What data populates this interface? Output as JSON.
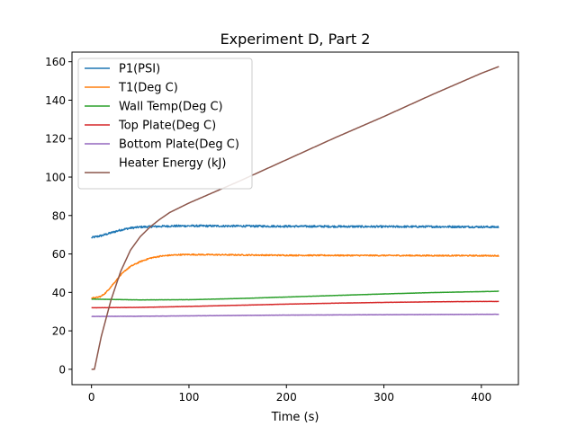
{
  "chart_data": {
    "type": "line",
    "title": "Experiment D, Part 2",
    "xlabel": "Time (s)",
    "ylabel": "",
    "xlim": [
      -20,
      438
    ],
    "ylim": [
      -8,
      165
    ],
    "xticks": [
      0,
      100,
      200,
      300,
      400
    ],
    "yticks": [
      0,
      20,
      40,
      60,
      80,
      100,
      120,
      140,
      160
    ],
    "grid": false,
    "legend_position": "top-left",
    "series": [
      {
        "name": "P1(PSI)",
        "color": "#1f77b4",
        "noise": 0.5,
        "points": [
          [
            0,
            68.5
          ],
          [
            10,
            69.5
          ],
          [
            20,
            71
          ],
          [
            30,
            72.5
          ],
          [
            40,
            73.5
          ],
          [
            50,
            74
          ],
          [
            60,
            74.2
          ],
          [
            80,
            74.5
          ],
          [
            100,
            74.6
          ],
          [
            150,
            74.5
          ],
          [
            200,
            74.4
          ],
          [
            250,
            74.3
          ],
          [
            300,
            74.2
          ],
          [
            350,
            74.2
          ],
          [
            400,
            74.1
          ],
          [
            418,
            74
          ]
        ]
      },
      {
        "name": "T1(Deg C)",
        "color": "#ff7f0e",
        "noise": 0.3,
        "points": [
          [
            0,
            37
          ],
          [
            5,
            37.3
          ],
          [
            10,
            38
          ],
          [
            15,
            40
          ],
          [
            20,
            43
          ],
          [
            25,
            46
          ],
          [
            30,
            49
          ],
          [
            35,
            51.5
          ],
          [
            40,
            53.5
          ],
          [
            50,
            56
          ],
          [
            60,
            57.8
          ],
          [
            70,
            58.8
          ],
          [
            80,
            59.3
          ],
          [
            90,
            59.6
          ],
          [
            100,
            59.7
          ],
          [
            150,
            59.5
          ],
          [
            200,
            59.3
          ],
          [
            300,
            59.2
          ],
          [
            418,
            59.1
          ]
        ]
      },
      {
        "name": "Wall Temp(Deg C)",
        "color": "#2ca02c",
        "noise": 0.05,
        "points": [
          [
            0,
            36.5
          ],
          [
            50,
            36.1
          ],
          [
            100,
            36.2
          ],
          [
            150,
            36.8
          ],
          [
            200,
            37.6
          ],
          [
            250,
            38.4
          ],
          [
            300,
            39.2
          ],
          [
            350,
            39.9
          ],
          [
            400,
            40.4
          ],
          [
            418,
            40.6
          ]
        ]
      },
      {
        "name": "Top Plate(Deg C)",
        "color": "#d62728",
        "noise": 0.05,
        "points": [
          [
            0,
            32
          ],
          [
            50,
            32.2
          ],
          [
            100,
            32.7
          ],
          [
            150,
            33.3
          ],
          [
            200,
            33.9
          ],
          [
            250,
            34.4
          ],
          [
            300,
            34.8
          ],
          [
            350,
            35.1
          ],
          [
            400,
            35.3
          ],
          [
            418,
            35.3
          ]
        ]
      },
      {
        "name": "Bottom Plate(Deg C)",
        "color": "#9467bd",
        "noise": 0.05,
        "points": [
          [
            0,
            27.5
          ],
          [
            50,
            27.6
          ],
          [
            100,
            27.8
          ],
          [
            150,
            28
          ],
          [
            200,
            28.2
          ],
          [
            250,
            28.3
          ],
          [
            300,
            28.4
          ],
          [
            350,
            28.5
          ],
          [
            400,
            28.6
          ],
          [
            418,
            28.6
          ]
        ]
      },
      {
        "name": "Heater Energy (kJ)",
        "color": "#8c564b",
        "noise": 0,
        "points": [
          [
            0,
            0
          ],
          [
            3,
            0
          ],
          [
            10,
            17
          ],
          [
            20,
            36
          ],
          [
            30,
            51
          ],
          [
            40,
            62
          ],
          [
            50,
            69
          ],
          [
            60,
            74
          ],
          [
            70,
            78
          ],
          [
            80,
            81.5
          ],
          [
            100,
            86.5
          ],
          [
            150,
            97.5
          ],
          [
            200,
            109
          ],
          [
            250,
            120.5
          ],
          [
            300,
            131.5
          ],
          [
            350,
            143
          ],
          [
            400,
            154
          ],
          [
            418,
            157.5
          ]
        ]
      }
    ]
  }
}
